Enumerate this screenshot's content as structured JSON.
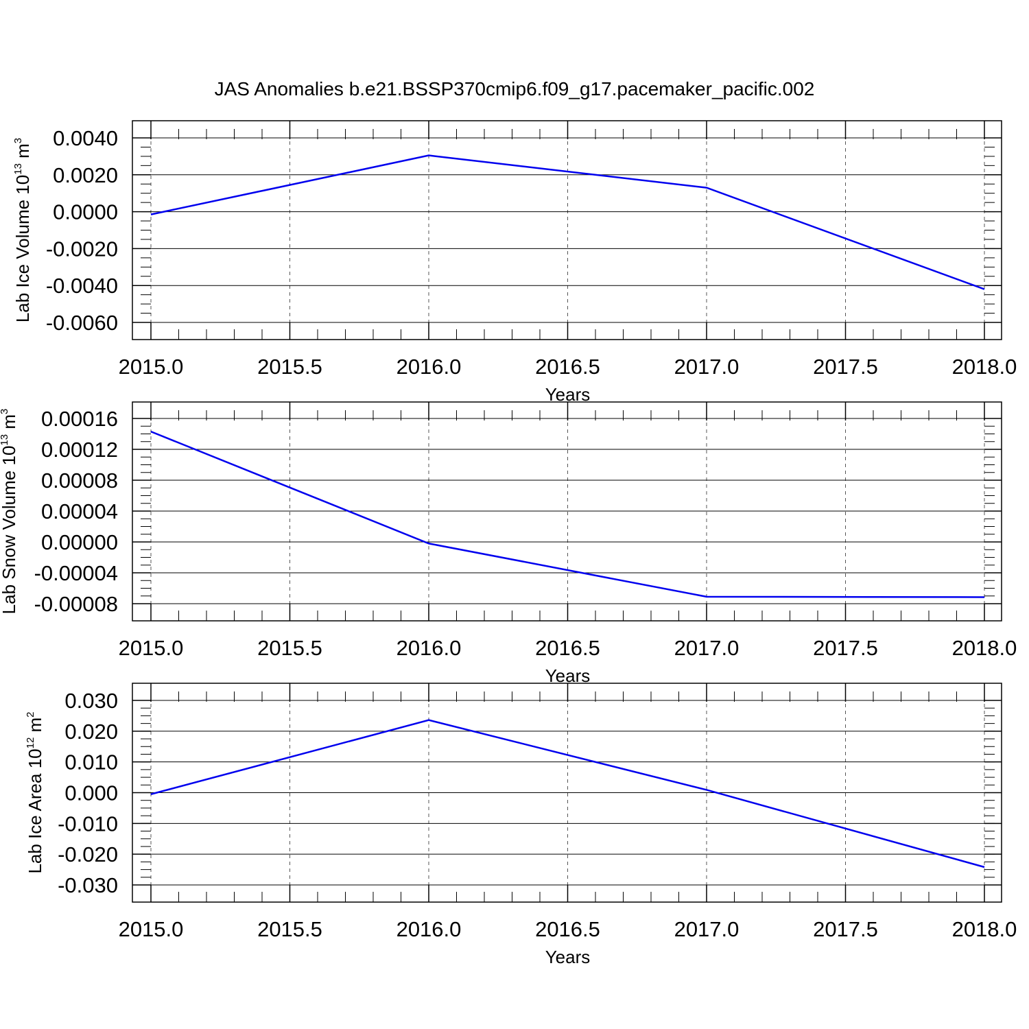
{
  "title": "JAS Anomalies b.e21.BSSP370cmip6.f09_g17.pacemaker_pacific.002",
  "colors": {
    "series": "#0000ee",
    "axes": "#000000",
    "grid": "#555555"
  },
  "chart_data": [
    {
      "type": "line",
      "title": "",
      "xlabel": "Years",
      "ylabel_main": "Lab Ice Volume 10",
      "ylabel_exp": "13",
      "ylabel_unit": " m",
      "ylabel_unit_exp": "3",
      "xlim": [
        2015.0,
        2018.0
      ],
      "ylim": [
        -0.006,
        0.0045
      ],
      "xticks": [
        2015.0,
        2015.5,
        2016.0,
        2016.5,
        2017.0,
        2017.5,
        2018.0
      ],
      "xtick_labels": [
        "2015.0",
        "2015.5",
        "2016.0",
        "2016.5",
        "2017.0",
        "2017.5",
        "2018.0"
      ],
      "yticks": [
        0.004,
        0.002,
        0.0,
        -0.002,
        -0.004,
        -0.006
      ],
      "ytick_labels": [
        "0.0040",
        "0.0020",
        "0.0000",
        "-0.0020",
        "-0.0040",
        "-0.0060"
      ],
      "yminor_step": 0.0005,
      "grid": "dashed vertical",
      "series": [
        {
          "x": [
            2015,
            2016,
            2017,
            2018
          ],
          "y": [
            -0.00015,
            0.00305,
            0.0013,
            -0.0042
          ]
        }
      ]
    },
    {
      "type": "line",
      "title": "",
      "xlabel": "Years",
      "ylabel_main": "Lab Snow Volume 10",
      "ylabel_exp": "13",
      "ylabel_unit": " m",
      "ylabel_unit_exp": "3",
      "xlim": [
        2015.0,
        2018.0
      ],
      "ylim": [
        -8e-05,
        0.00016
      ],
      "xticks": [
        2015.0,
        2015.5,
        2016.0,
        2016.5,
        2017.0,
        2017.5,
        2018.0
      ],
      "xtick_labels": [
        "2015.0",
        "2015.5",
        "2016.0",
        "2016.5",
        "2017.0",
        "2017.5",
        "2018.0"
      ],
      "yticks": [
        0.00016,
        0.00012,
        8e-05,
        4e-05,
        0.0,
        -4e-05,
        -8e-05
      ],
      "ytick_labels": [
        "0.00016",
        "0.00012",
        "0.00008",
        "0.00004",
        "0.00000",
        "-0.00004",
        "-0.00008"
      ],
      "yminor_step": 1e-05,
      "grid": "dashed vertical",
      "series": [
        {
          "x": [
            2015,
            2016,
            2017,
            2018
          ],
          "y": [
            0.000143,
            -2e-06,
            -7.1e-05,
            -7.15e-05
          ]
        }
      ]
    },
    {
      "type": "line",
      "title": "",
      "xlabel": "Years",
      "ylabel_main": "Lab Ice Area 10",
      "ylabel_exp": "12",
      "ylabel_unit": " m",
      "ylabel_unit_exp": "2",
      "xlim": [
        2015.0,
        2018.0
      ],
      "ylim": [
        -0.03,
        0.03
      ],
      "xticks": [
        2015.0,
        2015.5,
        2016.0,
        2016.5,
        2017.0,
        2017.5,
        2018.0
      ],
      "xtick_labels": [
        "2015.0",
        "2015.5",
        "2016.0",
        "2016.5",
        "2017.0",
        "2017.5",
        "2018.0"
      ],
      "yticks": [
        0.03,
        0.02,
        0.01,
        0.0,
        -0.01,
        -0.02,
        -0.03
      ],
      "ytick_labels": [
        "0.030",
        "0.020",
        "0.010",
        "0.000",
        "-0.010",
        "-0.020",
        "-0.030"
      ],
      "yminor_step": 0.0025,
      "grid": "dashed vertical",
      "series": [
        {
          "x": [
            2015,
            2016,
            2017,
            2018
          ],
          "y": [
            -0.0005,
            0.0236,
            0.0009,
            -0.0242
          ]
        }
      ]
    }
  ]
}
